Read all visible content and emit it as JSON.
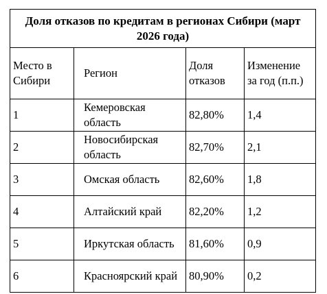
{
  "table": {
    "title": "Доля отказов по кредитам в регионах Сибири (март 2026 года)",
    "headers": [
      "Место в Сибири",
      "Регион",
      "Доля отказов",
      "Изменение за год (п.п.)"
    ],
    "rows": [
      [
        "1",
        "Кемеровская область",
        "82,80%",
        "1,4"
      ],
      [
        "2",
        "Новосибирская область",
        "82,70%",
        "2,1"
      ],
      [
        "3",
        "Омская область",
        "82,60%",
        "1,8"
      ],
      [
        "4",
        "Алтайский край",
        "82,20%",
        "1,2"
      ],
      [
        "5",
        "Иркутская область",
        "81,60%",
        "0,9"
      ],
      [
        "6",
        "Красноярский край",
        "80,90%",
        "0,2"
      ]
    ]
  }
}
